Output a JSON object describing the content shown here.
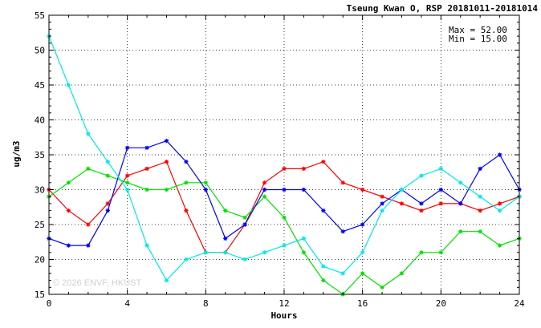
{
  "chart_data": {
    "type": "line",
    "title": "Tseung Kwan O, RSP 20181011-20181014",
    "xlabel": "Hours",
    "ylabel": "ug/m3",
    "xlim": [
      0,
      24
    ],
    "ylim": [
      15,
      55
    ],
    "xticks": [
      0,
      4,
      8,
      12,
      16,
      20,
      24
    ],
    "yticks": [
      15,
      20,
      25,
      30,
      35,
      40,
      45,
      50,
      55
    ],
    "grid": true,
    "stats": {
      "max_label": "Max = 52.00",
      "min_label": "Min = 15.00"
    },
    "watermark": "© 2026  ENVF, HKUST",
    "x": [
      0,
      1,
      2,
      3,
      4,
      5,
      6,
      7,
      8,
      9,
      10,
      11,
      12,
      13,
      14,
      15,
      16,
      17,
      18,
      19,
      20,
      21,
      22,
      23,
      24
    ],
    "series": [
      {
        "color": "#ff0000",
        "values": [
          30,
          27,
          25,
          28,
          32,
          33,
          34,
          27,
          21,
          21,
          25,
          31,
          33,
          33,
          34,
          31,
          30,
          29,
          28,
          27,
          28,
          28,
          27,
          28,
          29
        ]
      },
      {
        "color": "#00e000",
        "values": [
          29,
          31,
          33,
          32,
          31,
          30,
          30,
          31,
          31,
          27,
          26,
          29,
          26,
          21,
          17,
          15,
          18,
          16,
          18,
          21,
          21,
          24,
          24,
          22,
          23
        ]
      },
      {
        "color": "#0000ff",
        "values": [
          23,
          22,
          22,
          27,
          36,
          36,
          37,
          34,
          30,
          23,
          25,
          30,
          30,
          30,
          27,
          24,
          25,
          28,
          30,
          28,
          30,
          28,
          33,
          35,
          30
        ]
      },
      {
        "color": "#00e8e8",
        "values": [
          52,
          45,
          38,
          34,
          30,
          22,
          17,
          20,
          21,
          21,
          20,
          21,
          22,
          23,
          19,
          18,
          21,
          27,
          30,
          32,
          33,
          31,
          29,
          27,
          29
        ]
      }
    ]
  }
}
